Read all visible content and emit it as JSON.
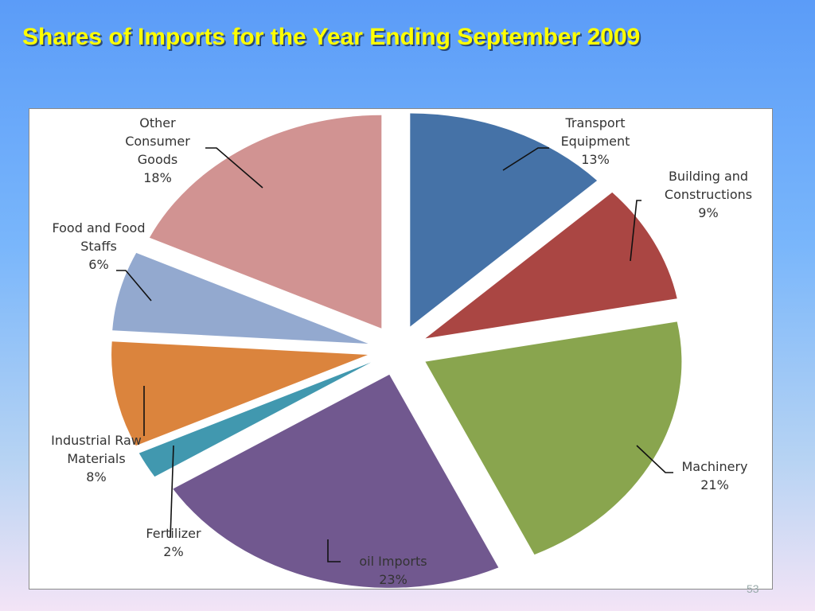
{
  "slide": {
    "title": "Shares of Imports for the Year Ending September 2009",
    "page_number": "53"
  },
  "chart_data": {
    "type": "pie",
    "title": "Shares of Imports for the Year Ending September 2009",
    "exploded": true,
    "slices": [
      {
        "label": [
          "Transport",
          "Equipment"
        ],
        "value": 13,
        "pct_text": "13%",
        "color": "#4572a7"
      },
      {
        "label": [
          "Building and",
          "Constructions"
        ],
        "value": 9,
        "pct_text": "9%",
        "color": "#aa4643"
      },
      {
        "label": [
          "Machinery"
        ],
        "value": 21,
        "pct_text": "21%",
        "color": "#89a54e"
      },
      {
        "label": [
          "oil Imports"
        ],
        "value": 23,
        "pct_text": "23%",
        "color": "#71588f"
      },
      {
        "label": [
          "Fertilizer"
        ],
        "value": 2,
        "pct_text": "2%",
        "color": "#4198af"
      },
      {
        "label": [
          "Industrial Raw",
          "Materials"
        ],
        "value": 8,
        "pct_text": "8%",
        "color": "#db843d"
      },
      {
        "label": [
          "Food and Food",
          "Staffs"
        ],
        "value": 6,
        "pct_text": "6%",
        "color": "#93a9cf"
      },
      {
        "label": [
          "Other",
          "Consumer",
          "Goods"
        ],
        "value": 18,
        "pct_text": "18%",
        "color": "#d19392"
      }
    ]
  }
}
